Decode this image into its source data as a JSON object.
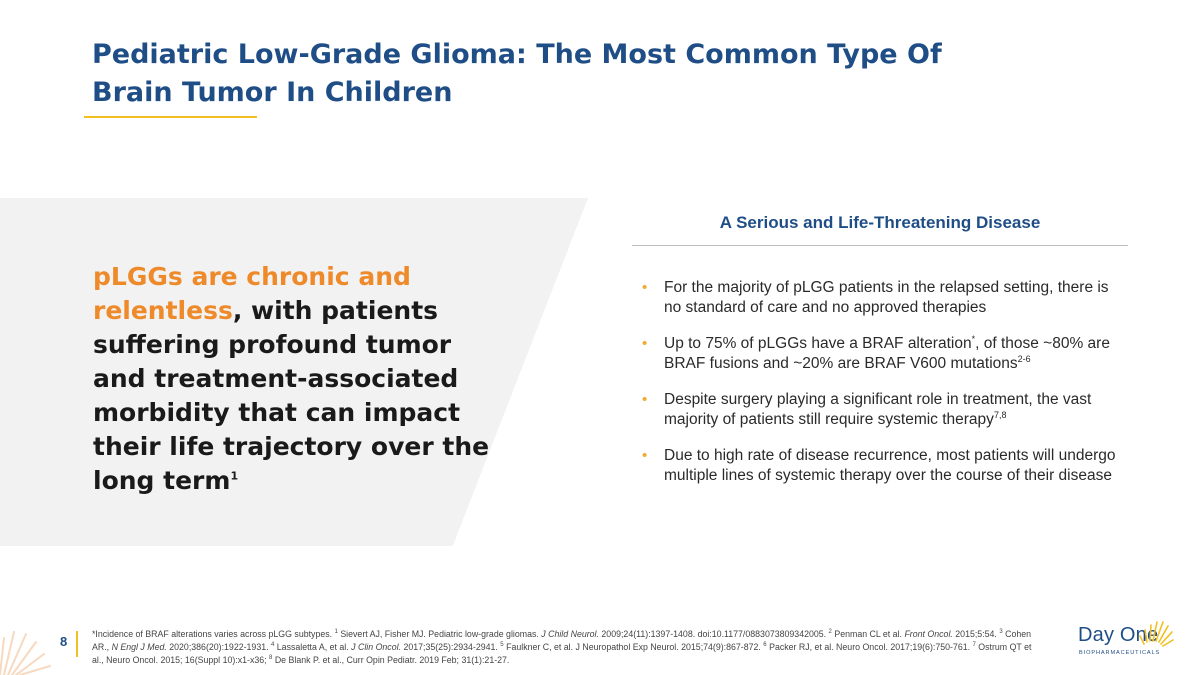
{
  "slide": {
    "title_line1": "Pediatric Low-Grade Glioma: The Most Common Type Of",
    "title_line2": "Brain Tumor In Children"
  },
  "lede": {
    "highlight": "pLGGs are chronic and relentless",
    "rest": ", with patients suffering profound tumor and treatment-associated morbidity that can impact their life trajectory over the long term",
    "ref": "1"
  },
  "section": {
    "title": "A Serious and Life-Threatening Disease",
    "bullets": [
      {
        "text": "For the majority of pLGG patients in the relapsed setting, there is no standard of care and no approved therapies"
      },
      {
        "text_a": "Up to 75% of pLGGs have a BRAF alteration",
        "sup_a": "*",
        "text_b": ", of those ~80% are BRAF fusions and ~20% are BRAF V600 mutations",
        "sup_b": "2-6"
      },
      {
        "text": "Despite surgery playing a significant role in treatment, the vast majority of patients still require systemic therapy",
        "sup": "7,8"
      },
      {
        "text": "Due to high rate of disease recurrence, most patients will undergo multiple lines of systemic therapy over the course of their disease"
      }
    ]
  },
  "footer": {
    "page_number": "8",
    "fn_1": "*Incidence of BRAF alterations varies across pLGG subtypes. ",
    "fn_1s": "1",
    "fn_2": " Sievert AJ, Fisher MJ. Pediatric low-grade gliomas. ",
    "fn_2i": "J Child Neurol.",
    "fn_3": " 2009;24(11):1397-1408. doi:10.1177/0883073809342005. ",
    "fn_3s": "2",
    "fn_4": " Penman CL et al. ",
    "fn_4i": "Front Oncol.",
    "fn_5": " 2015;5:54. ",
    "fn_5s": "3",
    "fn_6": " Cohen AR., ",
    "fn_6i": "N Engl J Med.",
    "fn_7": " 2020;386(20):1922-1931.  ",
    "fn_7s": "4",
    "fn_8": "  Lassaletta A, et al. ",
    "fn_8i": "J Clin Oncol.",
    "fn_9": " 2017;35(25):2934-2941. ",
    "fn_9s": "5",
    "fn_10": " Faulkner C, et al. J Neuropathol Exp Neurol. 2015;74(9):867-872. ",
    "fn_10s": "6",
    "fn_11": " Packer RJ, et al. Neuro Oncol. 2017;19(6):750-761. ",
    "fn_11s": "7",
    "fn_12": " Ostrum QT et al., Neuro Oncol. 2015; 16(Suppl 10):x1-x36; ",
    "fn_12s": "8",
    "fn_13": " De Blank P. et al., Curr Opin Pediatr. 2019 Feb; 31(1):21-27."
  },
  "logo": {
    "name": "Day One",
    "subtitle": "BIOPHARMACEUTICALS",
    "icon": "sun-rays-icon"
  },
  "colors": {
    "title_blue": "#1f4e87",
    "accent_orange": "#ee8a2a",
    "rule_gold": "#f2bf20",
    "panel_gray": "#f2f2f2"
  }
}
